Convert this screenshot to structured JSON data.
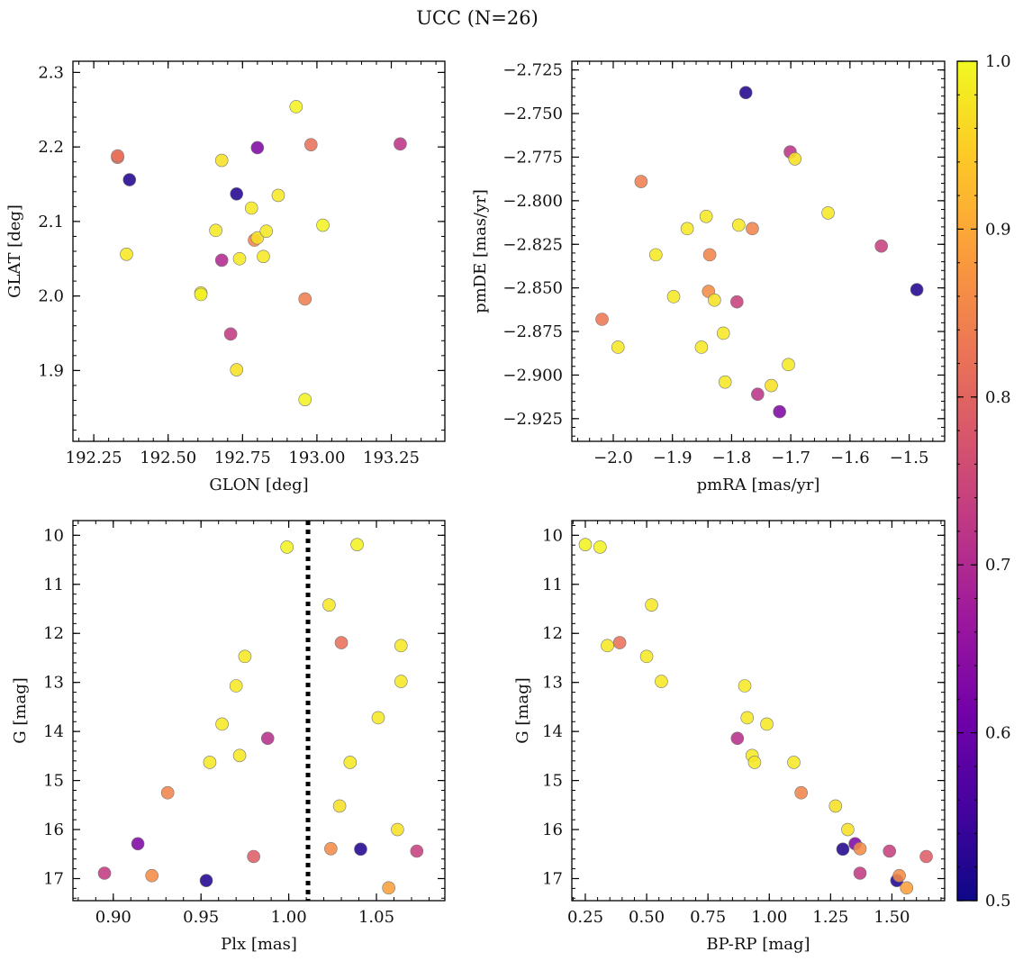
{
  "figure": {
    "title": "UCC (N=26)"
  },
  "colorbar": {
    "range": [
      0.5,
      1.0
    ],
    "ticks": [
      0.5,
      0.6,
      0.7,
      0.8,
      0.9,
      1.0
    ],
    "ticklabels": [
      "0.5",
      "0.6",
      "0.7",
      "0.8",
      "0.9",
      "1.0"
    ],
    "colormap": "plasma",
    "stops": [
      "#0d0887",
      "#46039f",
      "#7201a8",
      "#9c179e",
      "#bd3786",
      "#d8576b",
      "#ed7953",
      "#fb9f3a",
      "#fdca26",
      "#f0f921"
    ]
  },
  "chart_data": [
    {
      "type": "scatter",
      "xlabel": "GLON [deg]",
      "ylabel": "GLAT [deg]",
      "xlim": [
        192.18,
        193.43
      ],
      "ylim": [
        1.805,
        2.315
      ],
      "xticks": [
        192.25,
        192.5,
        192.75,
        193.0,
        193.25
      ],
      "xticklabels": [
        "192.25",
        "192.50",
        "192.75",
        "193.00",
        "193.25"
      ],
      "yticks": [
        1.9,
        2.0,
        2.1,
        2.2,
        2.3
      ],
      "yticklabels": [
        "1.9",
        "2.0",
        "2.1",
        "2.2",
        "2.3"
      ],
      "points": [
        {
          "x": 192.33,
          "y": 2.188,
          "c": 0.82
        },
        {
          "x": 192.33,
          "y": 2.186,
          "c": 0.81
        },
        {
          "x": 192.37,
          "y": 2.156,
          "c": 0.52
        },
        {
          "x": 192.36,
          "y": 2.056,
          "c": 0.98
        },
        {
          "x": 192.61,
          "y": 2.004,
          "c": 0.98
        },
        {
          "x": 192.61,
          "y": 2.002,
          "c": 0.99
        },
        {
          "x": 192.66,
          "y": 2.088,
          "c": 0.98
        },
        {
          "x": 192.68,
          "y": 2.182,
          "c": 0.97
        },
        {
          "x": 192.68,
          "y": 2.048,
          "c": 0.7
        },
        {
          "x": 192.71,
          "y": 1.949,
          "c": 0.73
        },
        {
          "x": 192.73,
          "y": 2.137,
          "c": 0.52
        },
        {
          "x": 192.73,
          "y": 1.901,
          "c": 0.97
        },
        {
          "x": 192.74,
          "y": 2.05,
          "c": 0.98
        },
        {
          "x": 192.78,
          "y": 2.118,
          "c": 0.98
        },
        {
          "x": 192.79,
          "y": 2.075,
          "c": 0.85
        },
        {
          "x": 192.8,
          "y": 2.078,
          "c": 0.97
        },
        {
          "x": 192.8,
          "y": 2.199,
          "c": 0.63
        },
        {
          "x": 192.82,
          "y": 2.053,
          "c": 0.98
        },
        {
          "x": 192.83,
          "y": 2.087,
          "c": 0.98
        },
        {
          "x": 192.87,
          "y": 2.135,
          "c": 0.98
        },
        {
          "x": 192.93,
          "y": 2.254,
          "c": 0.99
        },
        {
          "x": 192.96,
          "y": 1.996,
          "c": 0.84
        },
        {
          "x": 192.96,
          "y": 1.861,
          "c": 0.99
        },
        {
          "x": 192.98,
          "y": 2.203,
          "c": 0.82
        },
        {
          "x": 193.02,
          "y": 2.095,
          "c": 0.99
        },
        {
          "x": 193.28,
          "y": 2.204,
          "c": 0.72
        }
      ]
    },
    {
      "type": "scatter",
      "xlabel": "pmRA [mas/yr]",
      "ylabel": "pmDE [mas/yr]",
      "xlim": [
        -2.07,
        -1.44
      ],
      "ylim": [
        -2.938,
        -2.72
      ],
      "xticks": [
        -2.0,
        -1.9,
        -1.8,
        -1.7,
        -1.6,
        -1.5
      ],
      "xticklabels": [
        "−2.0",
        "−1.9",
        "−1.8",
        "−1.7",
        "−1.6",
        "−1.5"
      ],
      "yticks": [
        -2.725,
        -2.75,
        -2.775,
        -2.8,
        -2.825,
        -2.85,
        -2.875,
        -2.9,
        -2.925
      ],
      "yticklabels": [
        "−2.725",
        "−2.750",
        "−2.775",
        "−2.800",
        "−2.825",
        "−2.850",
        "−2.875",
        "−2.900",
        "−2.925"
      ],
      "points": [
        {
          "x": -1.776,
          "y": -2.738,
          "c": 0.52
        },
        {
          "x": -1.701,
          "y": -2.772,
          "c": 0.72
        },
        {
          "x": -1.693,
          "y": -2.776,
          "c": 0.97
        },
        {
          "x": -1.953,
          "y": -2.789,
          "c": 0.84
        },
        {
          "x": -1.637,
          "y": -2.807,
          "c": 0.98
        },
        {
          "x": -1.843,
          "y": -2.809,
          "c": 0.98
        },
        {
          "x": -1.875,
          "y": -2.816,
          "c": 0.98
        },
        {
          "x": -1.788,
          "y": -2.814,
          "c": 0.98
        },
        {
          "x": -1.765,
          "y": -2.816,
          "c": 0.85
        },
        {
          "x": -1.547,
          "y": -2.826,
          "c": 0.74
        },
        {
          "x": -1.928,
          "y": -2.831,
          "c": 0.98
        },
        {
          "x": -1.837,
          "y": -2.831,
          "c": 0.85
        },
        {
          "x": -1.487,
          "y": -2.851,
          "c": 0.52
        },
        {
          "x": -1.839,
          "y": -2.852,
          "c": 0.86
        },
        {
          "x": -1.898,
          "y": -2.855,
          "c": 0.98
        },
        {
          "x": -1.829,
          "y": -2.857,
          "c": 0.97
        },
        {
          "x": -1.791,
          "y": -2.858,
          "c": 0.74
        },
        {
          "x": -2.019,
          "y": -2.868,
          "c": 0.83
        },
        {
          "x": -1.814,
          "y": -2.876,
          "c": 0.98
        },
        {
          "x": -1.992,
          "y": -2.884,
          "c": 0.98
        },
        {
          "x": -1.851,
          "y": -2.884,
          "c": 0.98
        },
        {
          "x": -1.704,
          "y": -2.894,
          "c": 0.98
        },
        {
          "x": -1.811,
          "y": -2.904,
          "c": 0.98
        },
        {
          "x": -1.733,
          "y": -2.906,
          "c": 0.97
        },
        {
          "x": -1.756,
          "y": -2.911,
          "c": 0.72
        },
        {
          "x": -1.719,
          "y": -2.921,
          "c": 0.63
        }
      ]
    },
    {
      "type": "scatter",
      "xlabel": "Plx [mas]",
      "ylabel": "G [mag]",
      "xlim": [
        0.877,
        1.089
      ],
      "ylim": [
        17.45,
        9.7
      ],
      "xticks": [
        0.9,
        0.95,
        1.0,
        1.05
      ],
      "xticklabels": [
        "0.90",
        "0.95",
        "1.00",
        "1.05"
      ],
      "yticks": [
        10,
        11,
        12,
        13,
        14,
        15,
        16,
        17
      ],
      "yticklabels": [
        "10",
        "11",
        "12",
        "13",
        "14",
        "15",
        "16",
        "17"
      ],
      "vline": {
        "x": 1.011,
        "style": "dotted"
      },
      "points": [
        {
          "x": 0.999,
          "y": 10.24,
          "c": 0.99
        },
        {
          "x": 1.039,
          "y": 10.19,
          "c": 0.99
        },
        {
          "x": 1.023,
          "y": 11.42,
          "c": 0.98
        },
        {
          "x": 1.03,
          "y": 12.19,
          "c": 0.82
        },
        {
          "x": 1.064,
          "y": 12.25,
          "c": 0.98
        },
        {
          "x": 0.975,
          "y": 12.47,
          "c": 0.98
        },
        {
          "x": 1.064,
          "y": 12.98,
          "c": 0.98
        },
        {
          "x": 0.97,
          "y": 13.07,
          "c": 0.98
        },
        {
          "x": 1.051,
          "y": 13.72,
          "c": 0.98
        },
        {
          "x": 0.962,
          "y": 13.85,
          "c": 0.98
        },
        {
          "x": 0.988,
          "y": 14.14,
          "c": 0.71
        },
        {
          "x": 0.972,
          "y": 14.49,
          "c": 0.98
        },
        {
          "x": 0.955,
          "y": 14.63,
          "c": 0.98
        },
        {
          "x": 1.035,
          "y": 14.63,
          "c": 0.98
        },
        {
          "x": 0.931,
          "y": 15.25,
          "c": 0.85
        },
        {
          "x": 1.029,
          "y": 15.52,
          "c": 0.97
        },
        {
          "x": 1.062,
          "y": 16.0,
          "c": 0.97
        },
        {
          "x": 0.914,
          "y": 16.29,
          "c": 0.63
        },
        {
          "x": 1.024,
          "y": 16.39,
          "c": 0.86
        },
        {
          "x": 1.041,
          "y": 16.4,
          "c": 0.52
        },
        {
          "x": 1.073,
          "y": 16.44,
          "c": 0.74
        },
        {
          "x": 0.98,
          "y": 16.55,
          "c": 0.79
        },
        {
          "x": 0.895,
          "y": 16.89,
          "c": 0.73
        },
        {
          "x": 0.922,
          "y": 16.94,
          "c": 0.86
        },
        {
          "x": 0.953,
          "y": 17.04,
          "c": 0.52
        },
        {
          "x": 1.057,
          "y": 17.19,
          "c": 0.89
        }
      ]
    },
    {
      "type": "scatter",
      "xlabel": "BP-RP [mag]",
      "ylabel": "G [mag]",
      "xlim": [
        0.195,
        1.715
      ],
      "ylim": [
        17.45,
        9.7
      ],
      "xticks": [
        0.25,
        0.5,
        0.75,
        1.0,
        1.25,
        1.5
      ],
      "xticklabels": [
        "0.25",
        "0.50",
        "0.75",
        "1.00",
        "1.25",
        "1.50"
      ],
      "yticks": [
        10,
        11,
        12,
        13,
        14,
        15,
        16,
        17
      ],
      "yticklabels": [
        "10",
        "11",
        "12",
        "13",
        "14",
        "15",
        "16",
        "17"
      ],
      "points": [
        {
          "x": 0.25,
          "y": 10.19,
          "c": 0.99
        },
        {
          "x": 0.31,
          "y": 10.24,
          "c": 0.99
        },
        {
          "x": 0.52,
          "y": 11.42,
          "c": 0.98
        },
        {
          "x": 0.34,
          "y": 12.25,
          "c": 0.98
        },
        {
          "x": 0.39,
          "y": 12.19,
          "c": 0.82
        },
        {
          "x": 0.5,
          "y": 12.47,
          "c": 0.98
        },
        {
          "x": 0.56,
          "y": 12.98,
          "c": 0.98
        },
        {
          "x": 0.9,
          "y": 13.07,
          "c": 0.98
        },
        {
          "x": 0.91,
          "y": 13.72,
          "c": 0.98
        },
        {
          "x": 0.99,
          "y": 13.85,
          "c": 0.98
        },
        {
          "x": 0.87,
          "y": 14.14,
          "c": 0.71
        },
        {
          "x": 0.93,
          "y": 14.49,
          "c": 0.98
        },
        {
          "x": 0.94,
          "y": 14.63,
          "c": 0.98
        },
        {
          "x": 1.1,
          "y": 14.63,
          "c": 0.98
        },
        {
          "x": 1.13,
          "y": 15.25,
          "c": 0.85
        },
        {
          "x": 1.27,
          "y": 15.52,
          "c": 0.97
        },
        {
          "x": 1.32,
          "y": 16.0,
          "c": 0.97
        },
        {
          "x": 1.35,
          "y": 16.29,
          "c": 0.63
        },
        {
          "x": 1.3,
          "y": 16.4,
          "c": 0.52
        },
        {
          "x": 1.37,
          "y": 16.39,
          "c": 0.86
        },
        {
          "x": 1.49,
          "y": 16.44,
          "c": 0.74
        },
        {
          "x": 1.64,
          "y": 16.55,
          "c": 0.79
        },
        {
          "x": 1.37,
          "y": 16.89,
          "c": 0.73
        },
        {
          "x": 1.53,
          "y": 16.94,
          "c": 0.86
        },
        {
          "x": 1.52,
          "y": 17.04,
          "c": 0.52
        },
        {
          "x": 1.56,
          "y": 17.19,
          "c": 0.89
        }
      ]
    }
  ]
}
